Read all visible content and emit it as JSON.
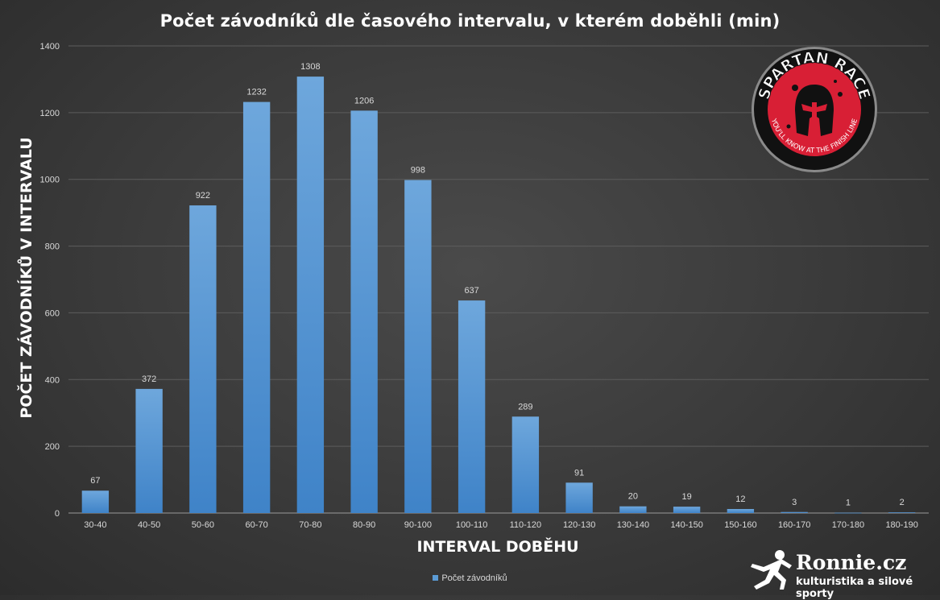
{
  "chart_data": {
    "type": "bar",
    "title": "Počet závodníků dle časového intervalu, v kterém doběhli (min)",
    "xlabel": "INTERVAL DOBĚHU",
    "ylabel": "POČET ZÁVODNÍKŮ V INTERVALU",
    "categories": [
      "30-40",
      "40-50",
      "50-60",
      "60-70",
      "70-80",
      "80-90",
      "90-100",
      "100-110",
      "110-120",
      "120-130",
      "130-140",
      "140-150",
      "150-160",
      "160-170",
      "170-180",
      "180-190"
    ],
    "series": [
      {
        "name": "Počet závodníků",
        "values": [
          67,
          372,
          922,
          1232,
          1308,
          1206,
          998,
          637,
          289,
          91,
          20,
          19,
          12,
          3,
          1,
          2
        ]
      }
    ],
    "ylim": [
      0,
      1400
    ],
    "yticks": [
      0,
      200,
      400,
      600,
      800,
      1000,
      1200,
      1400
    ],
    "grid": true,
    "legend_position": "bottom",
    "bar_color": "#5b9bd5"
  },
  "badge": {
    "name": "SPARTAN RACE",
    "tagline": "YOU'LL KNOW AT THE FINISH LINE"
  },
  "brand": {
    "name": "Ronnie.cz",
    "tagline": "kulturistika a silové sporty"
  }
}
